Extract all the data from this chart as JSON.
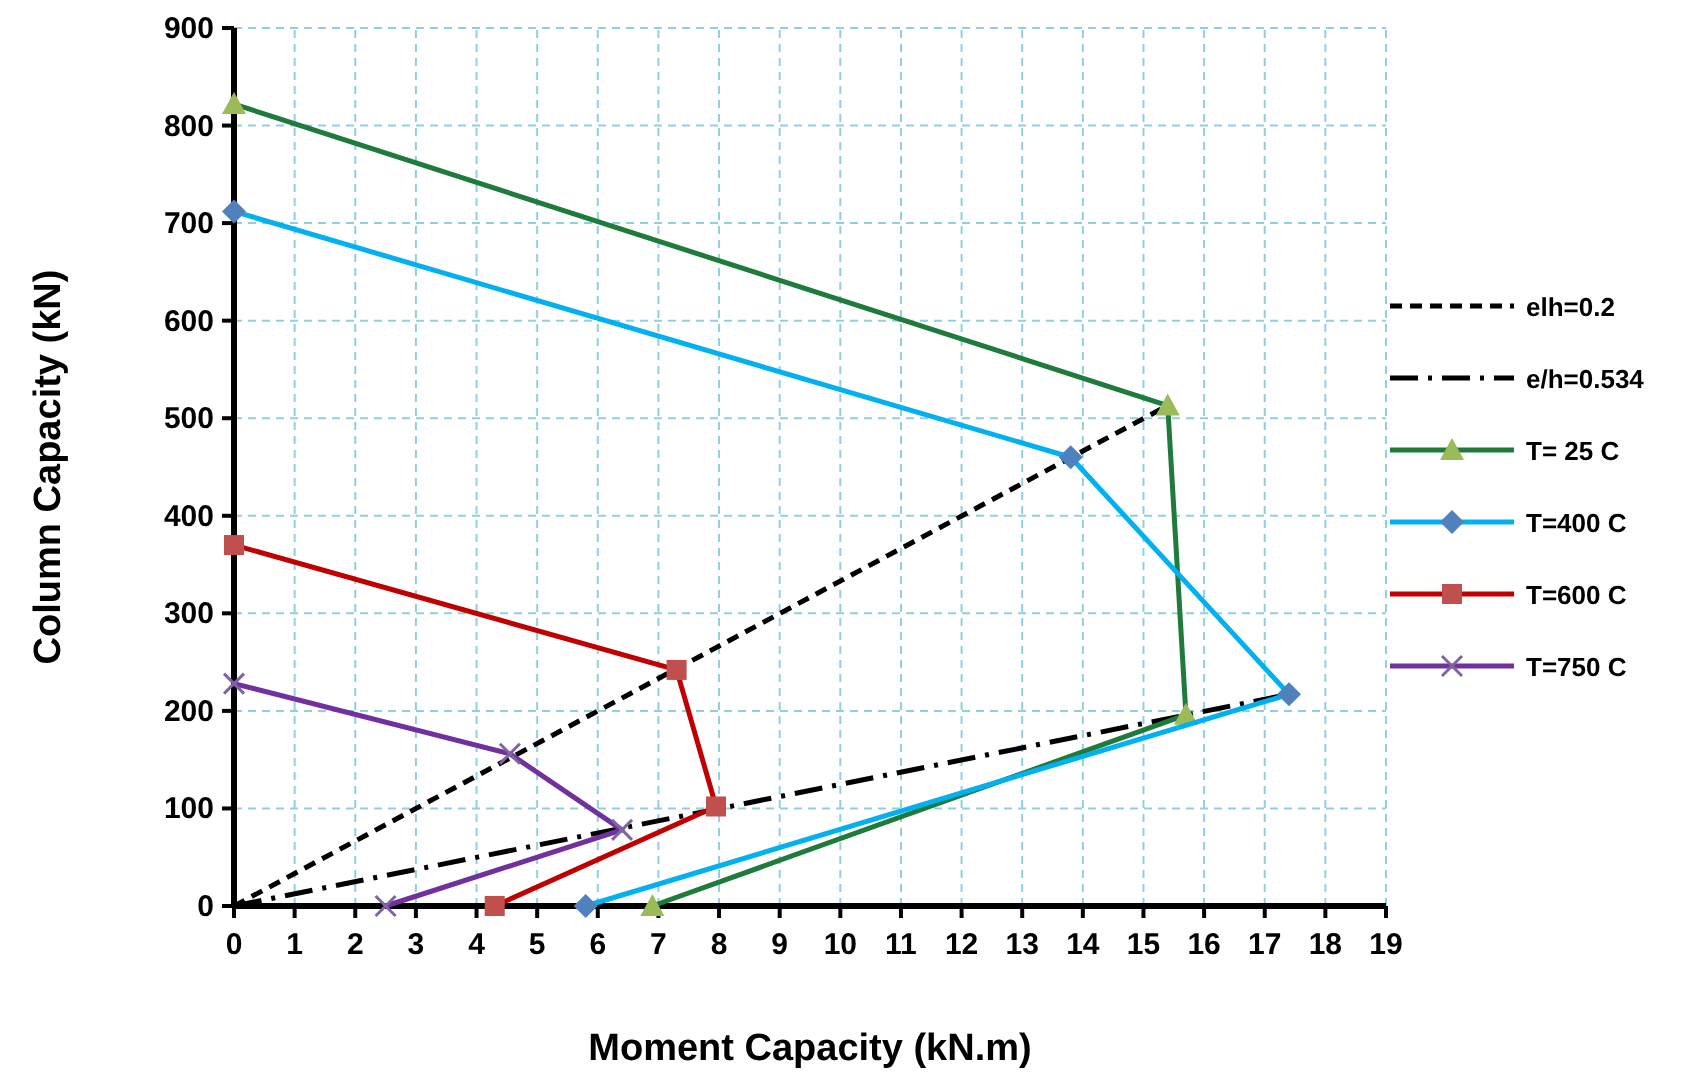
{
  "chart_data": {
    "type": "line",
    "xlabel": "Moment  Capacity (kN.m)",
    "ylabel": "Column Capacity  (kN)",
    "xlim": [
      0,
      19
    ],
    "xticks": [
      0,
      1,
      2,
      3,
      4,
      5,
      6,
      7,
      8,
      9,
      10,
      11,
      12,
      13,
      14,
      15,
      16,
      17,
      18,
      19
    ],
    "ylim": [
      0,
      900
    ],
    "yticks": [
      0,
      100,
      200,
      300,
      400,
      500,
      600,
      700,
      800,
      900
    ],
    "grid": true,
    "legend": "right",
    "series": [
      {
        "name": "elh=0.2",
        "color": "#000000",
        "x": [
          0,
          15.4
        ],
        "values": [
          0,
          513
        ],
        "line_style": "dashed"
      },
      {
        "name": "e/h=0.534",
        "color": "#000000",
        "x": [
          0,
          17.4
        ],
        "values": [
          0,
          217
        ],
        "line_style": "dashdot"
      },
      {
        "name": "T= 25 C",
        "color": "#1e7b3c",
        "x": [
          0,
          15.4,
          15.7,
          6.9
        ],
        "values": [
          822,
          513,
          196,
          0
        ],
        "marker": "triangle"
      },
      {
        "name": "T=400 C",
        "color": "#00b0f0",
        "x": [
          0,
          13.8,
          17.4,
          5.8
        ],
        "values": [
          712,
          460,
          217,
          0
        ],
        "marker": "diamond"
      },
      {
        "name": "T=600 C",
        "color": "#c00000",
        "x": [
          0,
          7.3,
          7.95,
          4.3
        ],
        "values": [
          370,
          242,
          102,
          0
        ],
        "marker": "square"
      },
      {
        "name": "T=750 C",
        "color": "#7030a0",
        "x": [
          0,
          4.55,
          6.4,
          2.5
        ],
        "values": [
          228,
          156,
          78,
          0
        ],
        "marker": "cross"
      }
    ]
  }
}
